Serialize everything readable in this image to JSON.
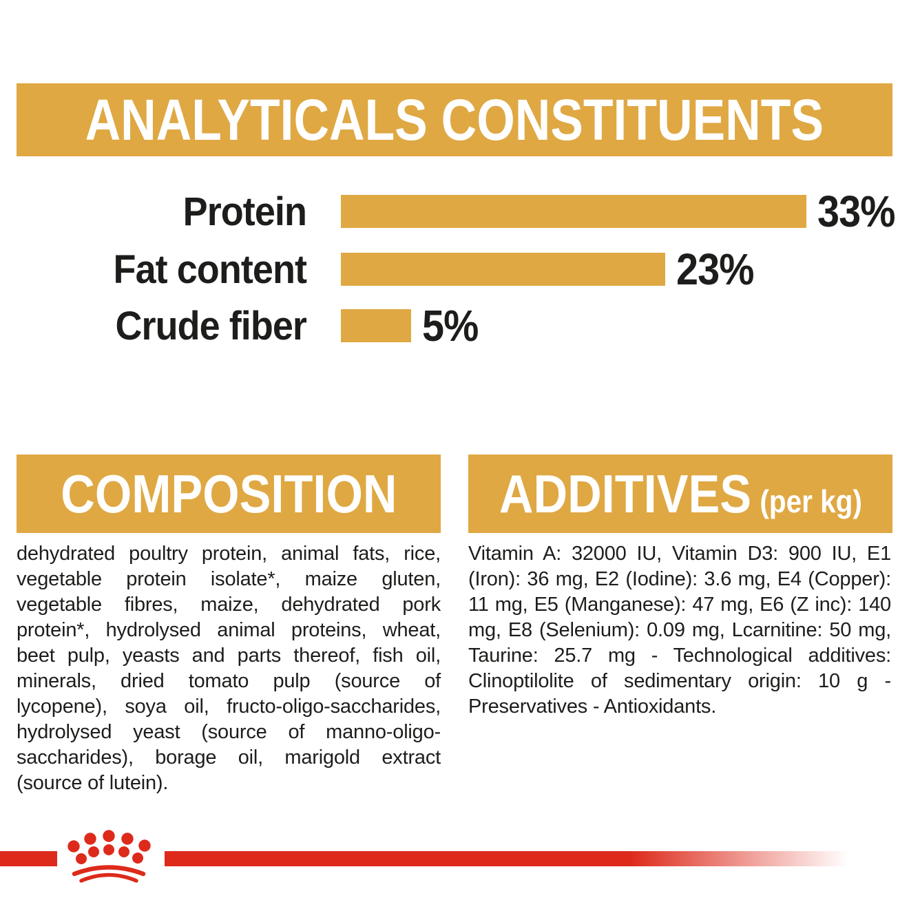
{
  "header": {
    "title": "ANALYTICALS CONSTITUENTS"
  },
  "chart_data": {
    "type": "bar",
    "orientation": "horizontal",
    "categories": [
      "Protein",
      "Fat content",
      "Crude fiber"
    ],
    "values": [
      33,
      23,
      5
    ],
    "value_labels": [
      "33%",
      "23%",
      "5%"
    ],
    "unit": "%",
    "xlim": [
      0,
      33
    ],
    "grid": false,
    "legend": false,
    "bar_color": "#DFA843",
    "text_color": "#1D1D1B"
  },
  "composition": {
    "title": "COMPOSITION",
    "text": "dehydrated poultry protein, animal fats, rice, vegetable protein isolate*, maize gluten, vegetable fibres, maize, dehydrated pork protein*, hydrolysed animal proteins, wheat, beet pulp, yeasts and parts thereof, fish oil, minerals, dried tomato pulp (source of lycopene), soya oil, fructo-oligo-saccharides, hydrolysed yeast (source of manno-oligo-saccharides), borage oil, marigold extract (source of lutein)."
  },
  "additives": {
    "title": "ADDITIVES",
    "unit_label": "(per kg)",
    "text": "Vitamin A: 32000 IU, Vitamin D3: 900 IU, E1 (Iron): 36 mg, E2 (Iodine): 3.6 mg, E4 (Copper): 11 mg, E5 (Manganese): 47 mg, E6 (Z inc): 140 mg, E8 (Selenium): 0.09 mg, Lcarnitine: 50 mg, Taurine: 25.7 mg - Technological additives: Clinoptilolite of sedimentary origin: 10 g - Preservatives - Antioxidants.",
    "title_display": "ADDITIVES (per kg)"
  },
  "footer": {
    "logo": "royal-canin-crown"
  },
  "colors": {
    "gold": "#DFA843",
    "red": "#DD2A1B",
    "text": "#1D1D1B",
    "header_text": "#FFFFFF"
  }
}
